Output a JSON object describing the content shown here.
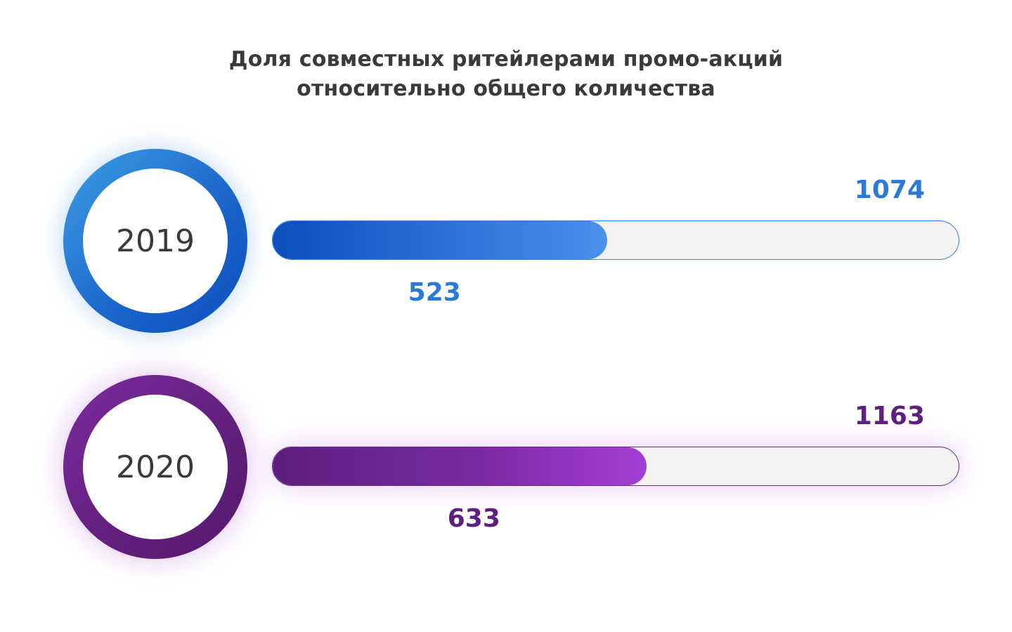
{
  "title": {
    "line1": "Доля совместных ритейлерами промо-акций",
    "line2": "относительно общего количества"
  },
  "chart_data": {
    "type": "bar",
    "title": "Доля совместных ритейлерами промо-акций относительно общего количества",
    "categories": [
      "2019",
      "2020"
    ],
    "series": [
      {
        "values": [
          523,
          633
        ]
      },
      {
        "values": [
          1074,
          1163
        ]
      }
    ],
    "colors": {
      "2019": "#2c7ad8",
      "2020": "#5e1f7e"
    }
  }
}
